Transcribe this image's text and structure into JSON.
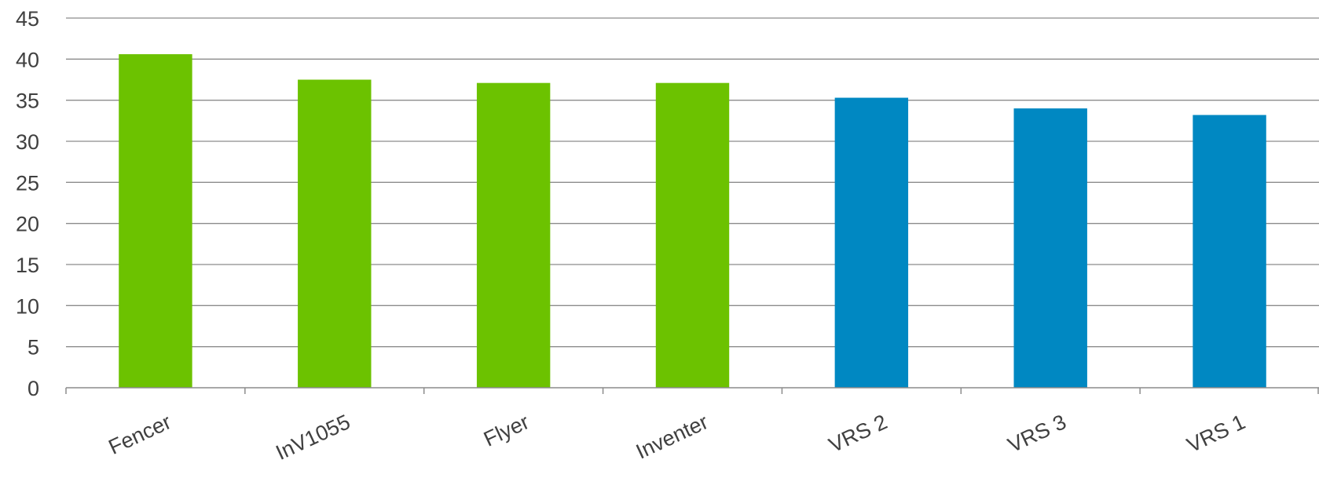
{
  "chart_data": {
    "type": "bar",
    "title": "",
    "xlabel": "",
    "ylabel": "",
    "categories": [
      "Fencer",
      "InV1055",
      "Flyer",
      "Inventer",
      "VRS 2",
      "VRS 3",
      "VRS 1"
    ],
    "values": [
      40.6,
      37.5,
      37.1,
      37.1,
      35.3,
      34.0,
      33.2
    ],
    "bar_colors": [
      "#6cc200",
      "#6cc200",
      "#6cc200",
      "#6cc200",
      "#0088c2",
      "#0088c2",
      "#0088c2"
    ],
    "ylim": [
      0,
      45
    ],
    "yticks": [
      "0",
      "5",
      "10",
      "15",
      "20",
      "25",
      "30",
      "35",
      "40",
      "45"
    ],
    "grid": true,
    "legend": "none"
  }
}
